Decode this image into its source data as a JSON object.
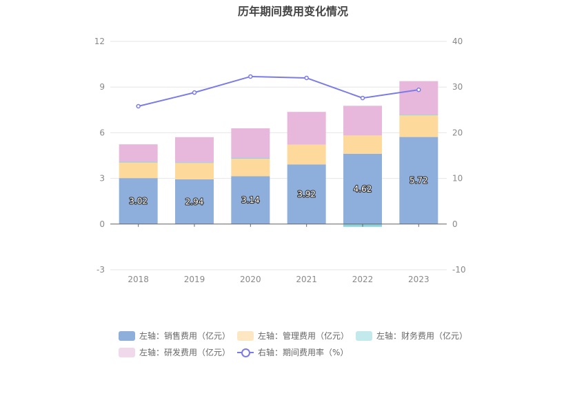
{
  "chart_data": {
    "type": "bar",
    "title": "历年期间费用变化情况",
    "categories": [
      "2018",
      "2019",
      "2020",
      "2021",
      "2022",
      "2023"
    ],
    "series": [
      {
        "name": "左轴：销售费用（亿元）",
        "values": [
          3.02,
          2.94,
          3.14,
          3.92,
          4.62,
          5.72
        ],
        "color": "#8eaedb",
        "axis": "left",
        "stack": true,
        "labels": [
          "3.02",
          "2.94",
          "3.14",
          "3.92",
          "4.62",
          "5.72"
        ]
      },
      {
        "name": "左轴：管理费用（亿元）",
        "values": [
          1.05,
          1.1,
          1.15,
          1.3,
          1.2,
          1.45
        ],
        "color": "#fdd99b",
        "axis": "left",
        "stack": true
      },
      {
        "name": "左轴：财务费用（亿元）",
        "values": [
          0.02,
          0.02,
          0.05,
          0.0,
          -0.18,
          0.02
        ],
        "color": "#8ad5db",
        "axis": "left",
        "stack": true
      },
      {
        "name": "左轴：研发费用（亿元）",
        "values": [
          1.15,
          1.65,
          1.95,
          2.15,
          1.95,
          2.2
        ],
        "color": "#e7b8dc",
        "axis": "left",
        "stack": true
      },
      {
        "name": "右轴：期间费用率（%）",
        "values": [
          25.8,
          28.8,
          32.3,
          32.0,
          27.6,
          29.4
        ],
        "color": "#7b7be8",
        "axis": "right",
        "type": "line"
      }
    ],
    "y_left": {
      "min": -3,
      "max": 12,
      "ticks": [
        "-3",
        "0",
        "3",
        "6",
        "9",
        "12"
      ]
    },
    "y_right": {
      "min": -10,
      "max": 40,
      "ticks": [
        "-10",
        "0",
        "10",
        "20",
        "30",
        "40"
      ]
    },
    "grid": true,
    "legend_position": "bottom"
  }
}
